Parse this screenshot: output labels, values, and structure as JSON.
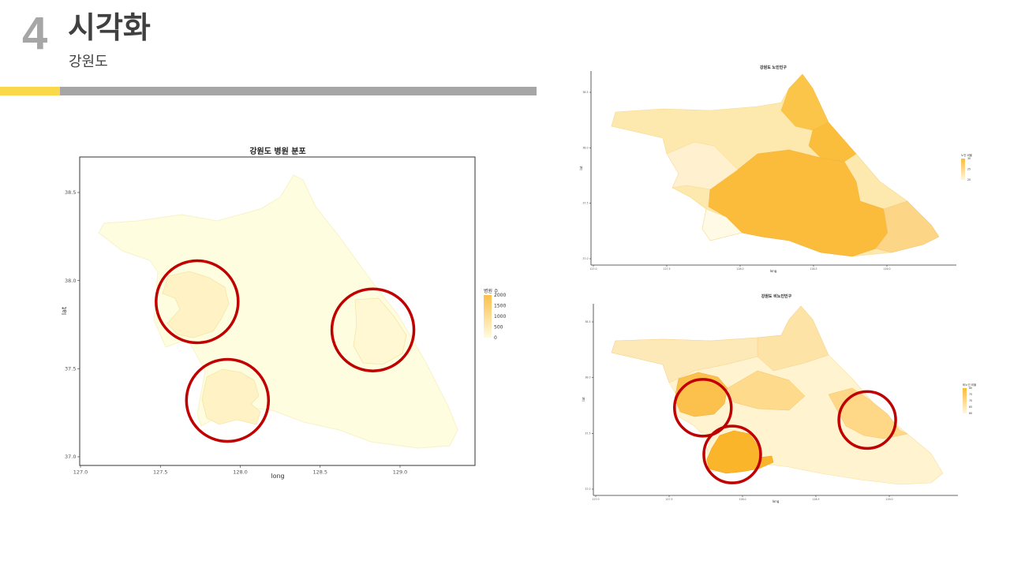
{
  "header": {
    "number": "4",
    "title": "시각화",
    "subtitle": "강원도"
  },
  "chart_data": [
    {
      "type": "choropleth",
      "title": "강원도 병원 분포",
      "xlabel": "long",
      "ylabel": "lat",
      "x_ticks": [
        "127.0",
        "127.5",
        "128.0",
        "128.5",
        "129.0"
      ],
      "y_ticks": [
        "37.0",
        "37.5",
        "38.0",
        "38.5"
      ],
      "xlim": [
        127.0,
        129.45
      ],
      "ylim": [
        36.95,
        38.7
      ],
      "legend": {
        "title": "병원 수",
        "labels": [
          "2000",
          "1500",
          "1000",
          "500",
          "0"
        ],
        "placement": "right"
      },
      "highlighted_regions": [
        {
          "name": "west",
          "lon": 127.73,
          "lat": 37.88
        },
        {
          "name": "south",
          "lon": 127.92,
          "lat": 37.32
        },
        {
          "name": "east",
          "lon": 128.83,
          "lat": 37.72
        }
      ]
    },
    {
      "type": "choropleth",
      "title": "강원도 노인인구",
      "xlabel": "long",
      "ylabel": "lat",
      "x_ticks": [
        "127.0",
        "127.5",
        "128.0",
        "128.5",
        "129.0"
      ],
      "y_ticks": [
        "37.0",
        "37.5",
        "38.0",
        "38.5"
      ],
      "legend": {
        "title": "노인 비율",
        "labels": [
          "30",
          "25",
          "20"
        ],
        "placement": "right"
      }
    },
    {
      "type": "choropleth",
      "title": "강원도 비노인인구",
      "xlabel": "long",
      "ylabel": "lat",
      "x_ticks": [
        "127.0",
        "127.5",
        "128.0",
        "128.5",
        "129.0"
      ],
      "y_ticks": [
        "37.0",
        "37.5",
        "38.0",
        "38.5"
      ],
      "legend": {
        "title": "비노인 비율",
        "labels": [
          "80",
          "75",
          "70",
          "65",
          "60"
        ],
        "placement": "right"
      },
      "highlighted_regions": [
        {
          "name": "west",
          "lon": 127.73,
          "lat": 37.73
        },
        {
          "name": "south",
          "lon": 127.93,
          "lat": 37.31
        },
        {
          "name": "east",
          "lon": 128.85,
          "lat": 37.62
        }
      ]
    }
  ],
  "colors": {
    "accent_yellow": "#f9d849",
    "bar_gray": "#a6a6a6",
    "circle_red": "#c00000"
  }
}
